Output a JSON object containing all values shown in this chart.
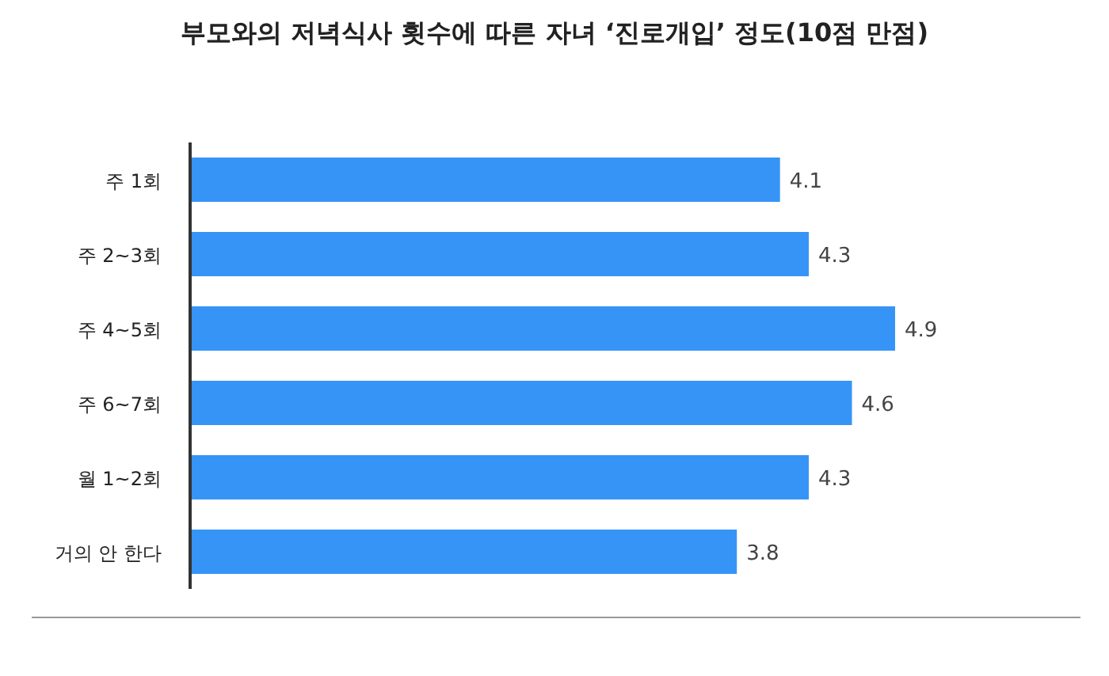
{
  "chart_data": {
    "type": "bar",
    "orientation": "horizontal",
    "title": "부모와의 저녁식사 횟수에 따른 자녀 ‘진로개입’ 정도(10점 만점)",
    "categories": [
      "주 1회",
      "주 2~3회",
      "주 4~5회",
      "주 6~7회",
      "월 1~2회",
      "거의 안 한다"
    ],
    "values": [
      4.1,
      4.3,
      4.9,
      4.6,
      4.3,
      3.8
    ],
    "color": "#3794f7",
    "data_labels": true
  }
}
